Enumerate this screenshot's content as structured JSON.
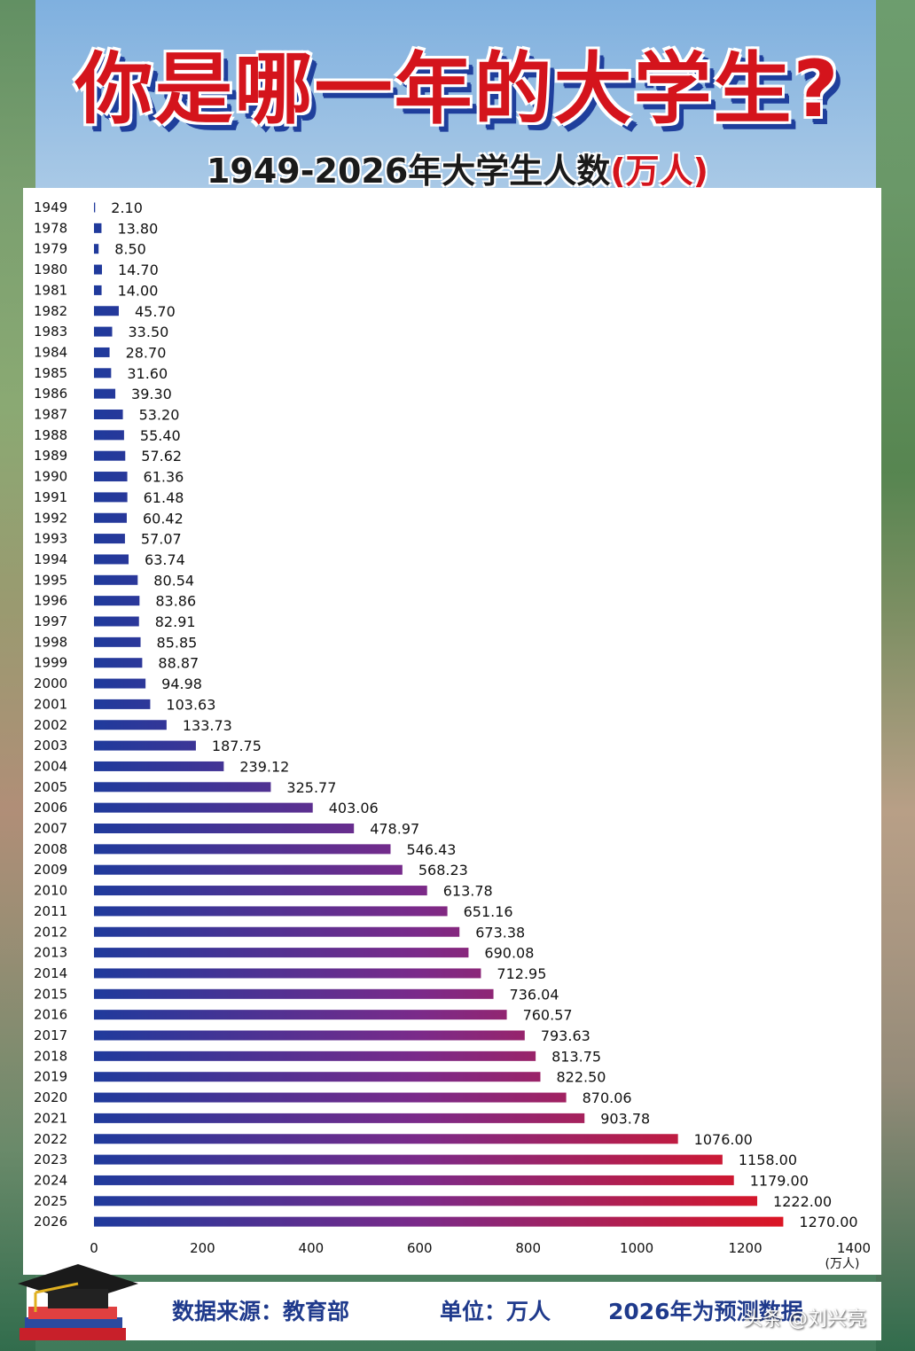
{
  "title": "你是哪一年的大学生?",
  "subtitle": {
    "main": "1949-2026年大学生人数",
    "unit": "(万人)"
  },
  "footer": {
    "source": "数据来源：教育部",
    "unit": "单位：万人",
    "note": "2026年为预测数据"
  },
  "watermark": "头条 @刘兴亮",
  "colors": {
    "bar_start": "#1f3a9c",
    "bar_end": "#e3141c",
    "title_red": "#d4141c",
    "text_blue": "#1f3a8c"
  },
  "chart_data": {
    "type": "bar",
    "orientation": "horizontal",
    "xlim": [
      0,
      1400
    ],
    "xticks": [
      "0",
      "200",
      "400",
      "600",
      "800",
      "1000",
      "1200",
      "1400"
    ],
    "xunit_label": "(万人)",
    "categories": [
      "1949",
      "1978",
      "1979",
      "1980",
      "1981",
      "1982",
      "1983",
      "1984",
      "1985",
      "1986",
      "1987",
      "1988",
      "1989",
      "1990",
      "1991",
      "1992",
      "1993",
      "1994",
      "1995",
      "1996",
      "1997",
      "1998",
      "1999",
      "2000",
      "2001",
      "2002",
      "2003",
      "2004",
      "2005",
      "2006",
      "2007",
      "2008",
      "2009",
      "2010",
      "2011",
      "2012",
      "2013",
      "2014",
      "2015",
      "2016",
      "2017",
      "2018",
      "2019",
      "2020",
      "2021",
      "2022",
      "2023",
      "2024",
      "2025",
      "2026"
    ],
    "values": [
      2.1,
      13.8,
      8.5,
      14.7,
      14.0,
      45.7,
      33.5,
      28.7,
      31.6,
      39.3,
      53.2,
      55.4,
      57.62,
      61.36,
      61.48,
      60.42,
      57.07,
      63.74,
      80.54,
      83.86,
      82.91,
      85.85,
      88.87,
      94.98,
      103.63,
      133.73,
      187.75,
      239.12,
      325.77,
      403.06,
      478.97,
      546.43,
      568.23,
      613.78,
      651.16,
      673.38,
      690.08,
      712.95,
      736.04,
      760.57,
      793.63,
      813.75,
      822.5,
      870.06,
      903.78,
      1076.0,
      1158.0,
      1179.0,
      1222.0,
      1270.0
    ],
    "labels": [
      "2.10",
      "13.80",
      "8.50",
      "14.70",
      "14.00",
      "45.70",
      "33.50",
      "28.70",
      "31.60",
      "39.30",
      "53.20",
      "55.40",
      "57.62",
      "61.36",
      "61.48",
      "60.42",
      "57.07",
      "63.74",
      "80.54",
      "83.86",
      "82.91",
      "85.85",
      "88.87",
      "94.98",
      "103.63",
      "133.73",
      "187.75",
      "239.12",
      "325.77",
      "403.06",
      "478.97",
      "546.43",
      "568.23",
      "613.78",
      "651.16",
      "673.38",
      "690.08",
      "712.95",
      "736.04",
      "760.57",
      "793.63",
      "813.75",
      "822.50",
      "870.06",
      "903.78",
      "1076.00",
      "1158.00",
      "1179.00",
      "1222.00",
      "1270.00"
    ],
    "grid": false,
    "legend": "none"
  }
}
